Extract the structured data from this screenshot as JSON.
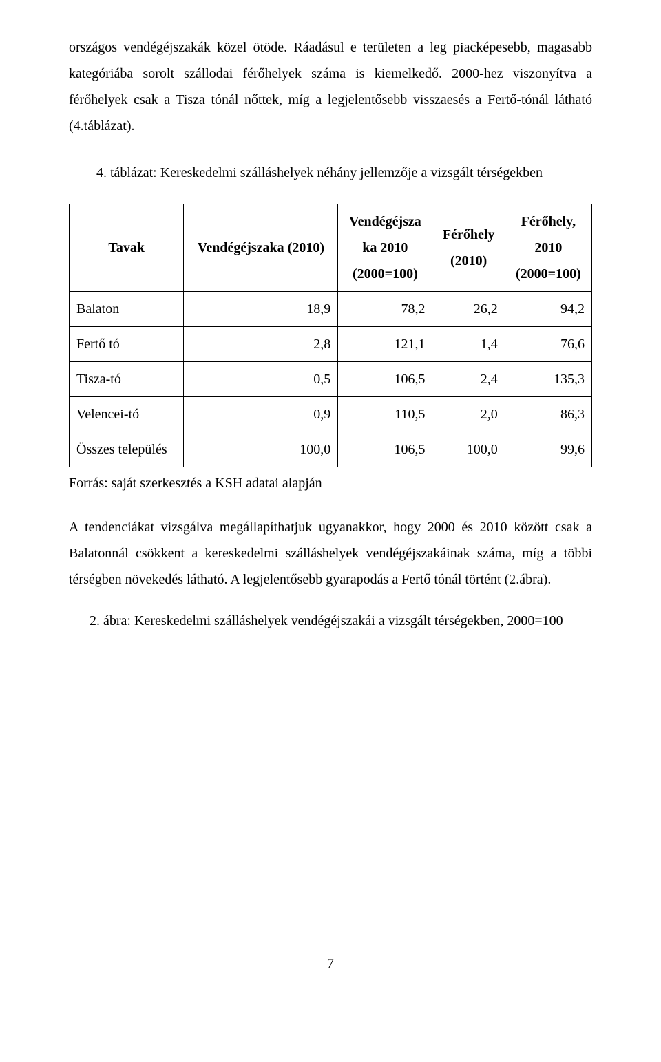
{
  "para1": "országos vendégéjszakák közel ötöde. Ráadásul e területen a leg piacképesebb, magasabb kategóriába sorolt szállodai férőhelyek száma is kiemelkedő. 2000-hez viszonyítva a férőhelyek csak a Tisza tónál nőttek, míg a legjelentősebb visszaesés a Fertő-tónál látható (4.táblázat).",
  "table_caption": "4. táblázat: Kereskedelmi szálláshelyek néhány jellemzője a vizsgált térségekben",
  "table": {
    "headers": {
      "col0": "Tavak",
      "col1": "Vendégéjszaka (2010)",
      "col2_line1": "Vendégéjsza",
      "col2_line2": "ka 2010",
      "col2_line3": "(2000=100)",
      "col3_line1": "Férőhely",
      "col3_line2": "(2010)",
      "col4_line1": "Férőhely,",
      "col4_line2": "2010",
      "col4_line3": "(2000=100)"
    },
    "rows": [
      {
        "label": "Balaton",
        "c1": "18,9",
        "c2": "78,2",
        "c3": "26,2",
        "c4": "94,2"
      },
      {
        "label": "Fertő tó",
        "c1": "2,8",
        "c2": "121,1",
        "c3": "1,4",
        "c4": "76,6"
      },
      {
        "label": "Tisza-tó",
        "c1": "0,5",
        "c2": "106,5",
        "c3": "2,4",
        "c4": "135,3"
      },
      {
        "label": "Velencei-tó",
        "c1": "0,9",
        "c2": "110,5",
        "c3": "2,0",
        "c4": "86,3"
      },
      {
        "label": "Összes település",
        "c1": "100,0",
        "c2": "106,5",
        "c3": "100,0",
        "c4": "99,6"
      }
    ]
  },
  "source": "Forrás: saját szerkesztés a KSH adatai alapján",
  "para2": "A tendenciákat vizsgálva megállapíthatjuk ugyanakkor, hogy 2000 és 2010 között csak a Balatonnál csökkent a kereskedelmi szálláshelyek vendégéjszakáinak száma, míg a többi térségben növekedés látható. A legjelentősebb gyarapodás a Fertő tónál történt (2.ábra).",
  "fig_caption": "2. ábra: Kereskedelmi szálláshelyek vendégéjszakái a vizsgált térségekben, 2000=100",
  "page_number": "7"
}
